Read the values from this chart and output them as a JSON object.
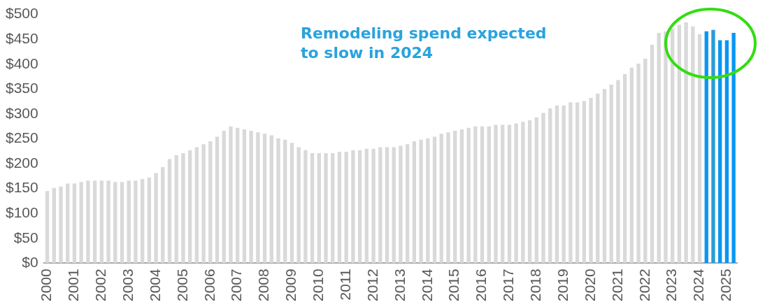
{
  "chart_data": {
    "type": "bar",
    "categories": [
      "2000",
      null,
      null,
      null,
      "2001",
      null,
      null,
      null,
      "2002",
      null,
      null,
      null,
      "2003",
      null,
      null,
      null,
      "2004",
      null,
      null,
      null,
      "2005",
      null,
      null,
      null,
      "2006",
      null,
      null,
      null,
      "2007",
      null,
      null,
      null,
      "2008",
      null,
      null,
      null,
      "2009",
      null,
      null,
      null,
      "2010",
      null,
      null,
      null,
      "2011",
      null,
      null,
      null,
      "2012",
      null,
      null,
      null,
      "2013",
      null,
      null,
      null,
      "2014",
      null,
      null,
      null,
      "2015",
      null,
      null,
      null,
      "2016",
      null,
      null,
      null,
      "2017",
      null,
      null,
      null,
      "2018",
      null,
      null,
      null,
      "2019",
      null,
      null,
      null,
      "2020",
      null,
      null,
      null,
      "2021",
      null,
      null,
      null,
      "2022",
      null,
      null,
      null,
      "2023",
      null,
      null,
      null,
      "2024",
      null,
      null,
      null,
      "2025",
      null
    ],
    "values": [
      145,
      151,
      154,
      160,
      160,
      163,
      166,
      166,
      166,
      166,
      163,
      163,
      166,
      166,
      169,
      172,
      181,
      193,
      209,
      217,
      221,
      227,
      233,
      239,
      245,
      254,
      266,
      275,
      272,
      269,
      266,
      263,
      260,
      257,
      251,
      248,
      242,
      233,
      227,
      221,
      221,
      221,
      221,
      224,
      224,
      227,
      227,
      230,
      230,
      233,
      233,
      233,
      236,
      239,
      245,
      248,
      251,
      254,
      260,
      263,
      266,
      269,
      272,
      275,
      275,
      275,
      278,
      278,
      278,
      281,
      284,
      287,
      293,
      302,
      311,
      317,
      317,
      323,
      323,
      326,
      332,
      341,
      350,
      359,
      368,
      380,
      393,
      401,
      411,
      439,
      463,
      466,
      472,
      479,
      484,
      476,
      460,
      466,
      469,
      448,
      448,
      463
    ],
    "colors": [
      "#d9d9d9",
      "#d9d9d9",
      "#d9d9d9",
      "#d9d9d9",
      "#d9d9d9",
      "#d9d9d9",
      "#d9d9d9",
      "#d9d9d9",
      "#d9d9d9",
      "#d9d9d9",
      "#d9d9d9",
      "#d9d9d9",
      "#d9d9d9",
      "#d9d9d9",
      "#d9d9d9",
      "#d9d9d9",
      "#d9d9d9",
      "#d9d9d9",
      "#d9d9d9",
      "#d9d9d9",
      "#d9d9d9",
      "#d9d9d9",
      "#d9d9d9",
      "#d9d9d9",
      "#d9d9d9",
      "#d9d9d9",
      "#d9d9d9",
      "#d9d9d9",
      "#d9d9d9",
      "#d9d9d9",
      "#d9d9d9",
      "#d9d9d9",
      "#d9d9d9",
      "#d9d9d9",
      "#d9d9d9",
      "#d9d9d9",
      "#d9d9d9",
      "#d9d9d9",
      "#d9d9d9",
      "#d9d9d9",
      "#d9d9d9",
      "#d9d9d9",
      "#d9d9d9",
      "#d9d9d9",
      "#d9d9d9",
      "#d9d9d9",
      "#d9d9d9",
      "#d9d9d9",
      "#d9d9d9",
      "#d9d9d9",
      "#d9d9d9",
      "#d9d9d9",
      "#d9d9d9",
      "#d9d9d9",
      "#d9d9d9",
      "#d9d9d9",
      "#d9d9d9",
      "#d9d9d9",
      "#d9d9d9",
      "#d9d9d9",
      "#d9d9d9",
      "#d9d9d9",
      "#d9d9d9",
      "#d9d9d9",
      "#d9d9d9",
      "#d9d9d9",
      "#d9d9d9",
      "#d9d9d9",
      "#d9d9d9",
      "#d9d9d9",
      "#d9d9d9",
      "#d9d9d9",
      "#d9d9d9",
      "#d9d9d9",
      "#d9d9d9",
      "#d9d9d9",
      "#d9d9d9",
      "#d9d9d9",
      "#d9d9d9",
      "#d9d9d9",
      "#d9d9d9",
      "#d9d9d9",
      "#d9d9d9",
      "#d9d9d9",
      "#d9d9d9",
      "#d9d9d9",
      "#d9d9d9",
      "#d9d9d9",
      "#d9d9d9",
      "#d9d9d9",
      "#d9d9d9",
      "#d9d9d9",
      "#d9d9d9",
      "#d9d9d9",
      "#d9d9d9",
      "#d9d9d9",
      "#d9d9d9",
      "#0a96f2",
      "#2b9bd8",
      "#0a96f2",
      "#0a96f2",
      "#0a96f2"
    ],
    "ylim": [
      0,
      500
    ],
    "yticks": [
      {
        "value": 0,
        "label": "$0"
      },
      {
        "value": 50,
        "label": "$50"
      },
      {
        "value": 100,
        "label": "$100"
      },
      {
        "value": 150,
        "label": "$150"
      },
      {
        "value": 200,
        "label": "$200"
      },
      {
        "value": 250,
        "label": "$250"
      },
      {
        "value": 300,
        "label": "$300"
      },
      {
        "value": 350,
        "label": "$350"
      },
      {
        "value": 400,
        "label": "$400"
      },
      {
        "value": 450,
        "label": "$450"
      },
      {
        "value": 500,
        "label": "$500"
      }
    ],
    "grid": false,
    "legend": false,
    "annotations": [
      "Remodeling spend expected\nto slow in 2024"
    ]
  }
}
